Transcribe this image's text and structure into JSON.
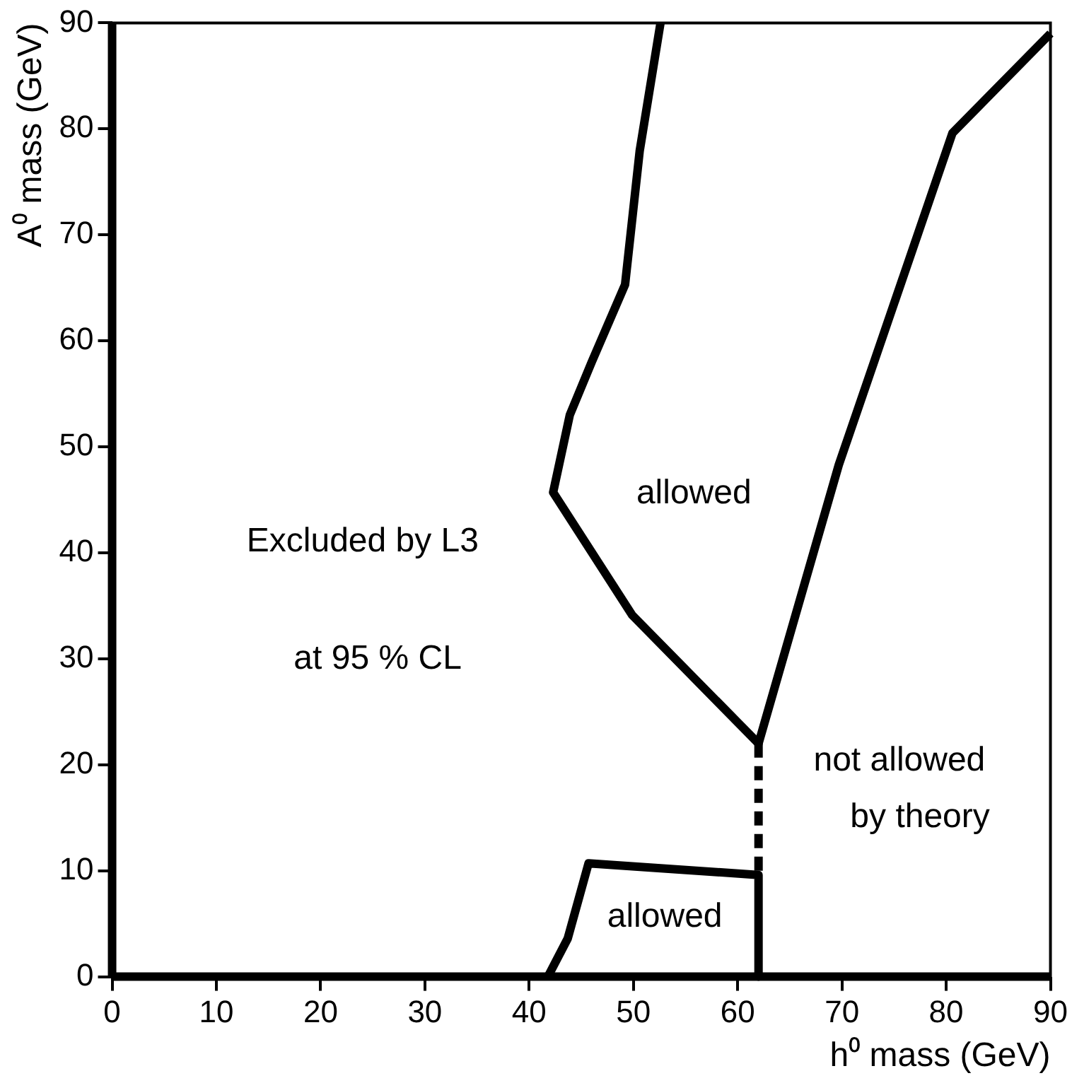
{
  "chart_data": {
    "type": "line",
    "xlabel": "h⁰ mass (GeV)",
    "ylabel": "A⁰ mass (GeV)",
    "xlim": [
      0,
      90
    ],
    "ylim": [
      0,
      90
    ],
    "xticks": [
      0,
      10,
      20,
      30,
      40,
      50,
      60,
      70,
      80,
      90
    ],
    "yticks": [
      0,
      10,
      20,
      30,
      40,
      50,
      60,
      70,
      80,
      90
    ],
    "grid": false,
    "legend": false,
    "marker": "none",
    "series": [
      {
        "color": "#000000",
        "x": [
          0,
          0
        ],
        "values": [
          0,
          90
        ]
      },
      {
        "color": "#000000",
        "x": [
          0,
          90
        ],
        "values": [
          0,
          0
        ]
      },
      {
        "color": "#000000",
        "x": [
          52.6,
          50.6,
          49.2,
          46,
          43.9,
          42.3,
          49.9,
          62,
          69.7,
          80.6,
          90
        ],
        "values": [
          90,
          77.9,
          65.3,
          58,
          53,
          45.7,
          34.1,
          22,
          48.3,
          79.6,
          89
        ]
      },
      {
        "color": "#000000",
        "x": [
          62,
          62
        ],
        "values": [
          22,
          10
        ],
        "line_style": "dashed"
      },
      {
        "color": "#000000",
        "x": [
          41.8,
          43.7,
          45.7,
          62,
          62
        ],
        "values": [
          0,
          3.6,
          10.7,
          9.6,
          0
        ]
      }
    ],
    "annotations": [
      "allowed",
      "Excluded by L3",
      "at 95 % CL",
      "allowed",
      "not allowed",
      "by theory"
    ]
  }
}
